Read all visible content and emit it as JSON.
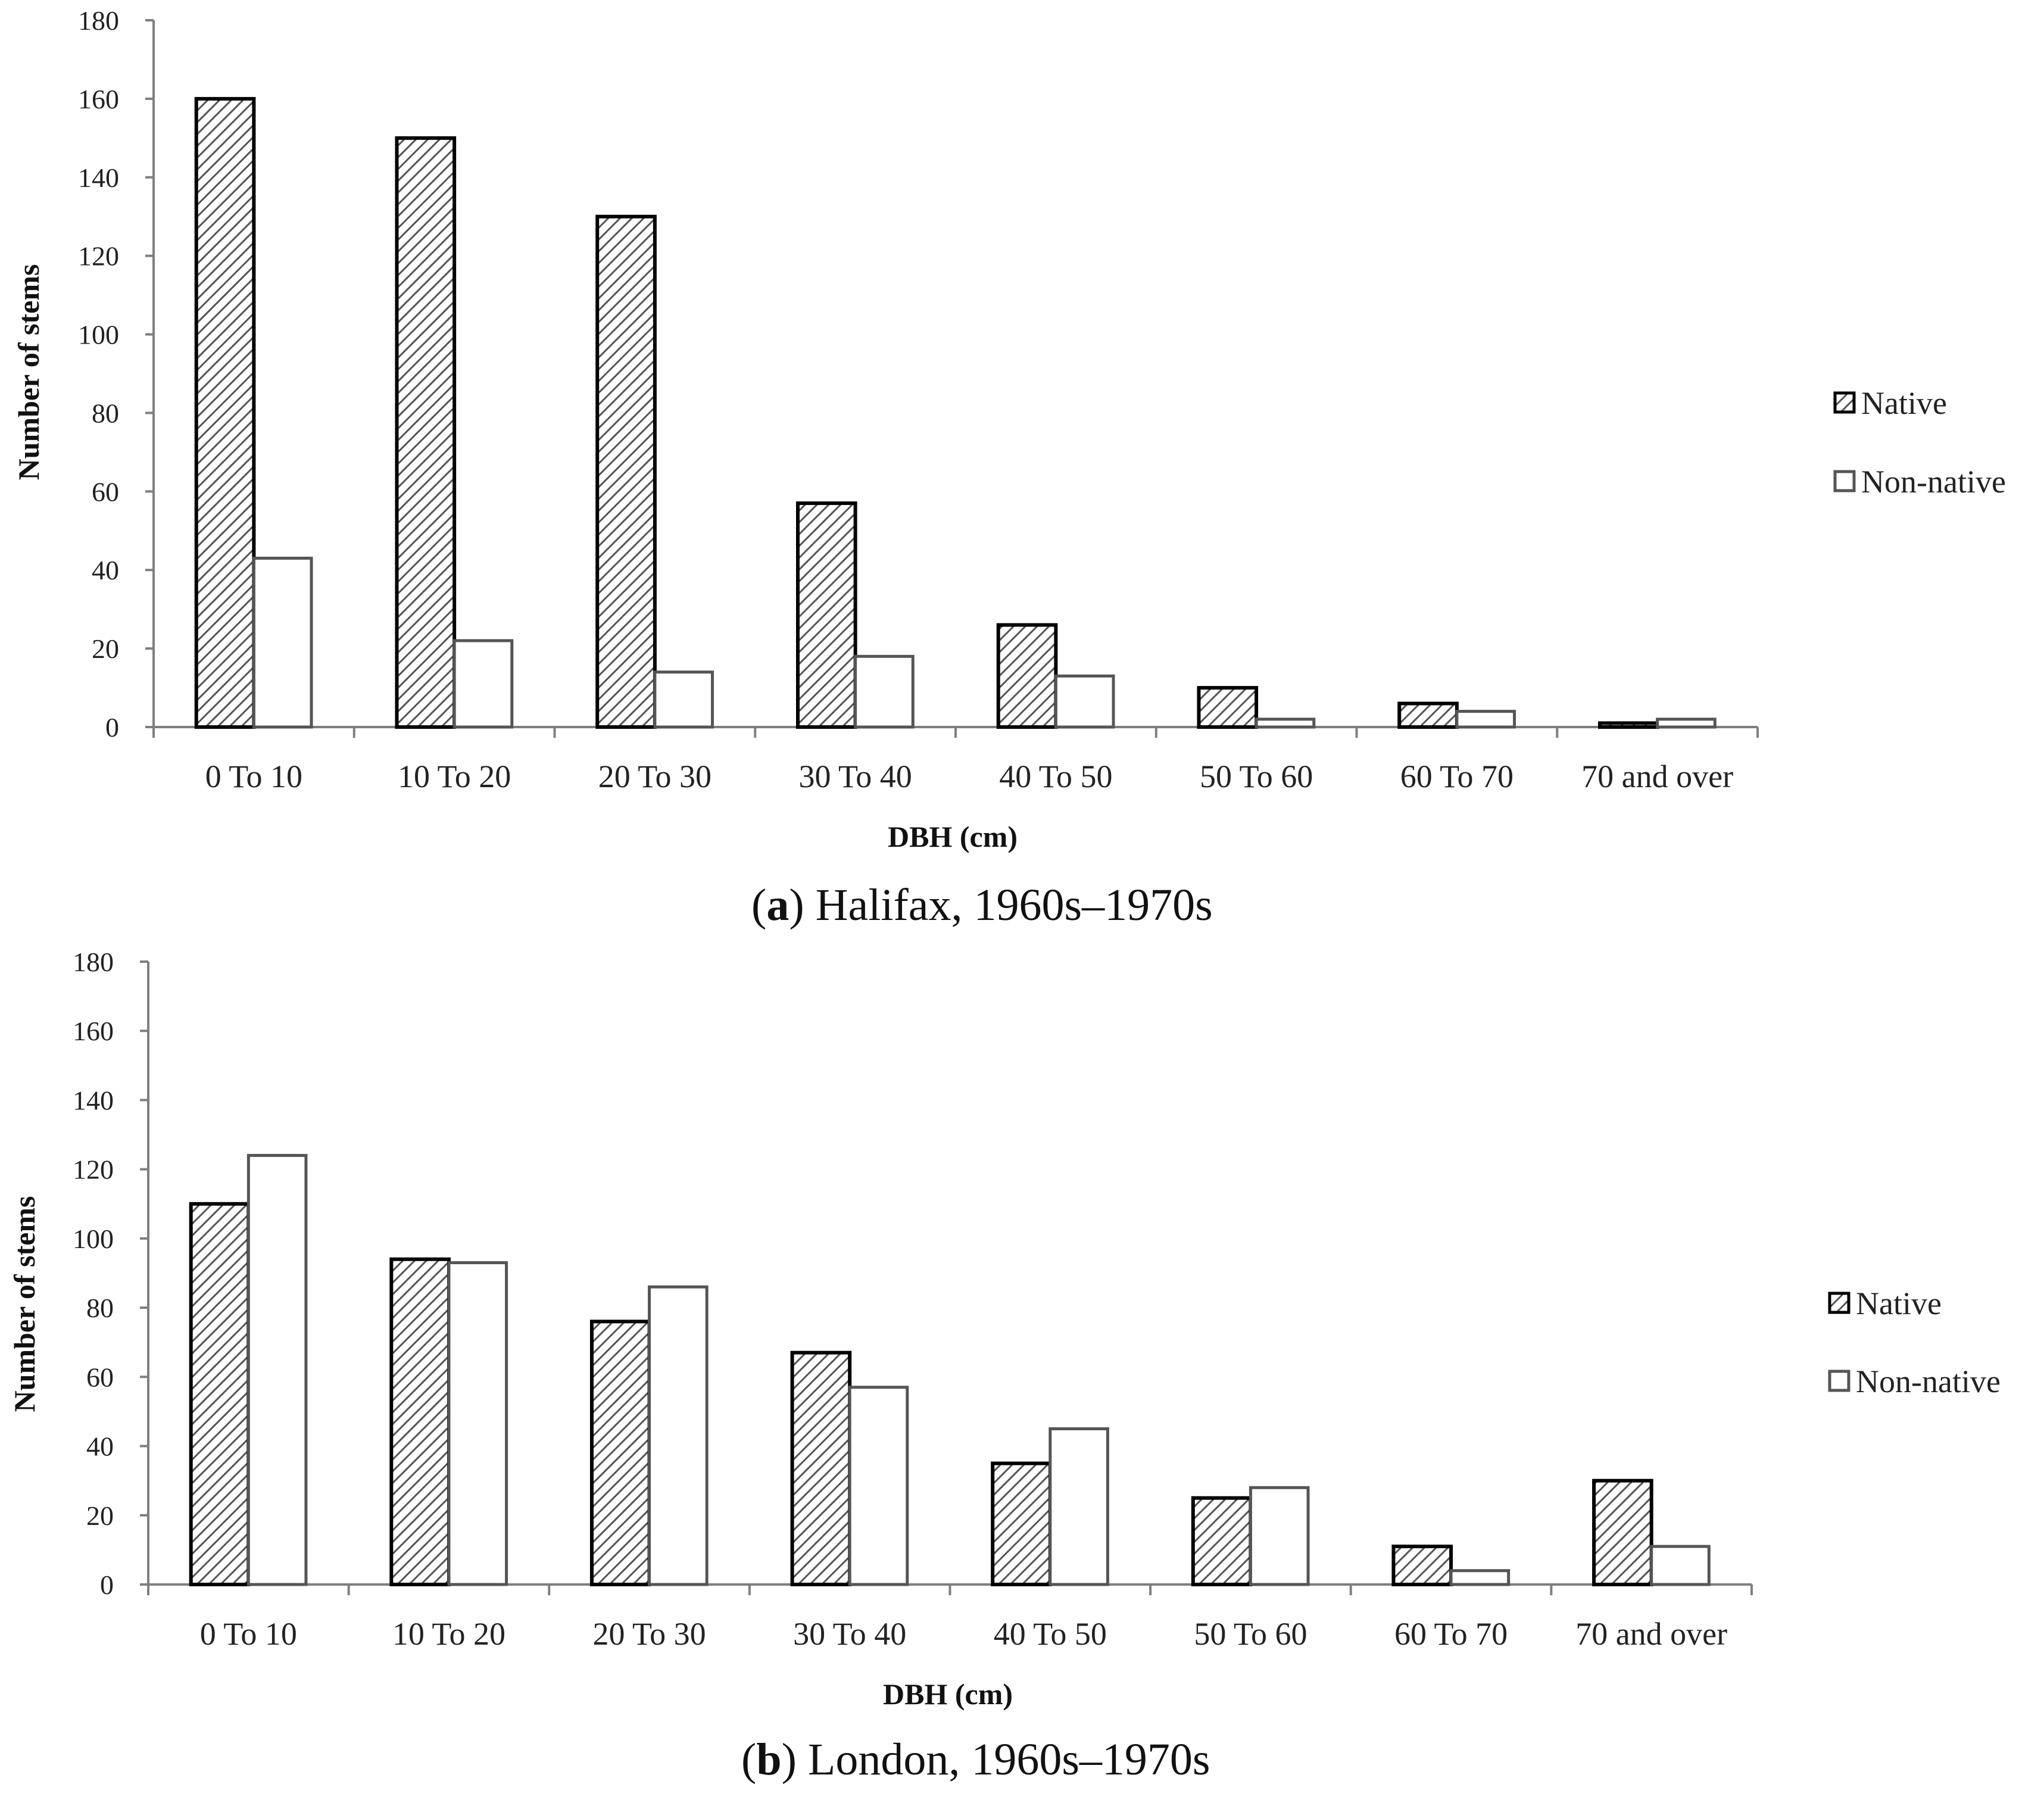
{
  "chart_data": [
    {
      "type": "bar",
      "caption_letter": "a",
      "caption_text": "Halifax, 1960s–1970s",
      "xlabel": "DBH (cm)",
      "ylabel": "Number of stems",
      "ylim": [
        0,
        180
      ],
      "yticks": [
        0,
        20,
        40,
        60,
        80,
        100,
        120,
        140,
        160,
        180
      ],
      "categories": [
        "0 To 10",
        "10 To 20",
        "20 To 30",
        "30 To 40",
        "40 To 50",
        "50 To 60",
        "60 To 70",
        "70 and over"
      ],
      "series": [
        {
          "name": "Native",
          "values": [
            160,
            150,
            130,
            57,
            26,
            10,
            6,
            1
          ]
        },
        {
          "name": "Non-native",
          "values": [
            43,
            22,
            14,
            18,
            13,
            2,
            4,
            2
          ]
        }
      ],
      "legend_position": "right"
    },
    {
      "type": "bar",
      "caption_letter": "b",
      "caption_text": "London, 1960s–1970s",
      "xlabel": "DBH (cm)",
      "ylabel": "Number of stems",
      "ylim": [
        0,
        180
      ],
      "yticks": [
        0,
        20,
        40,
        60,
        80,
        100,
        120,
        140,
        160,
        180
      ],
      "categories": [
        "0 To 10",
        "10 To 20",
        "20 To 30",
        "30 To 40",
        "40 To 50",
        "50 To 60",
        "60 To 70",
        "70 and over"
      ],
      "series": [
        {
          "name": "Native",
          "values": [
            110,
            94,
            76,
            67,
            35,
            25,
            11,
            30
          ]
        },
        {
          "name": "Non-native",
          "values": [
            124,
            93,
            86,
            57,
            45,
            28,
            4,
            11
          ]
        }
      ],
      "legend_position": "right"
    }
  ],
  "colors": {
    "native_stroke": "#000000",
    "native_hatch": "#555555",
    "nonnative_stroke": "#555555",
    "nonnative_fill": "#ffffff",
    "axis": "#7f7f7f"
  }
}
